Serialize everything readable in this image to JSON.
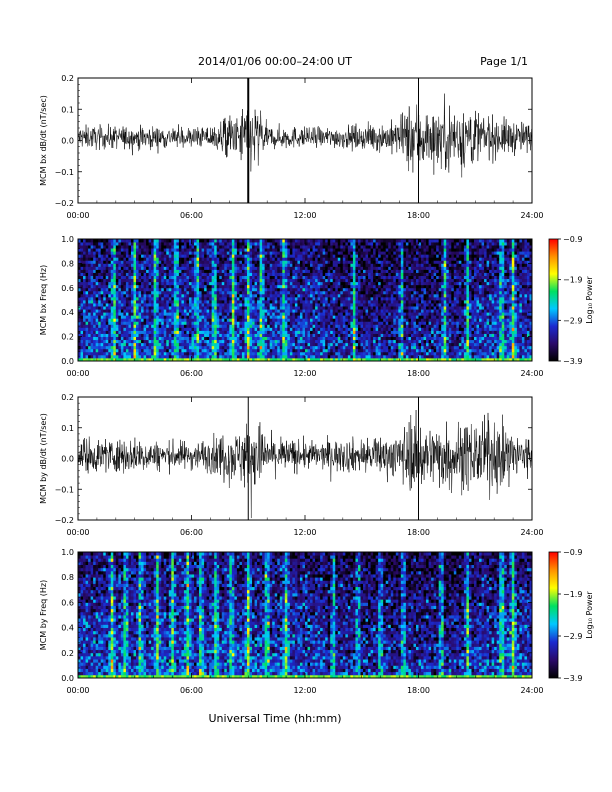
{
  "header": {
    "title": "2014/01/06  00:00–24:00 UT",
    "page": "Page 1/1"
  },
  "xlabel": "Universal Time (hh:mm)",
  "colors": {
    "background": "#ffffff",
    "trace": "#000000",
    "spectrogram_scale": [
      "#000000",
      "#2a0a6a",
      "#1b2bd0",
      "#00c8ff",
      "#00e060",
      "#ffff00",
      "#ff9000",
      "#ff0000"
    ]
  },
  "chart_data": [
    {
      "type": "line",
      "ylabel": "MCM bx dB/dt (nT/sec)",
      "xlim": [
        "00:00",
        "24:00"
      ],
      "xticks": [
        "00:00",
        "06:00",
        "12:00",
        "18:00",
        "24:00"
      ],
      "ylim": [
        -0.2,
        0.2
      ],
      "yticks": [
        "0.2",
        "0.1",
        "0.0",
        "−0.1",
        "−0.2"
      ],
      "series": [
        {
          "x_hours": [
            0,
            1,
            2,
            3,
            4,
            5,
            6,
            7,
            7.5,
            8,
            8.5,
            9,
            10,
            11,
            12,
            13,
            14,
            15,
            16,
            17,
            18,
            18.5,
            19,
            19.5,
            20,
            20.5,
            21,
            22,
            23,
            24
          ],
          "y_envelope": [
            0.04,
            0.04,
            0.04,
            0.04,
            0.04,
            0.035,
            0.035,
            0.04,
            0.06,
            0.09,
            0.06,
            0.2,
            0.04,
            0.04,
            0.035,
            0.035,
            0.04,
            0.04,
            0.05,
            0.06,
            0.2,
            0.09,
            0.11,
            0.13,
            0.15,
            0.12,
            0.1,
            0.07,
            0.06,
            0.05
          ]
        }
      ],
      "spikes": [
        {
          "x": "09:00",
          "ymin": -0.2,
          "ymax": 0.2
        },
        {
          "x": "18:00",
          "ymin": -0.2,
          "ymax": 0.2
        }
      ]
    },
    {
      "type": "heatmap",
      "ylabel": "MCM bx Freq (Hz)",
      "xlim": [
        "00:00",
        "24:00"
      ],
      "xticks": [
        "00:00",
        "06:00",
        "12:00",
        "18:00",
        "24:00"
      ],
      "ylim": [
        0.0,
        1.0
      ],
      "yticks": [
        "1.0",
        "0.8",
        "0.6",
        "0.4",
        "0.2",
        "0.0"
      ],
      "colorbar": {
        "label": "Log₁₀ Power",
        "range": [
          -3.9,
          -0.9
        ],
        "ticks": [
          "−0.9",
          "−1.9",
          "−2.9",
          "−3.9"
        ]
      },
      "bright_times_hours": [
        1.9,
        3.0,
        4.1,
        5.2,
        6.3,
        7.2,
        8.2,
        9.0,
        9.7,
        10.9,
        14.6,
        17.1,
        19.4,
        20.6,
        22.4,
        23.0
      ]
    },
    {
      "type": "line",
      "ylabel": "MCM by dB/dt (nT/sec)",
      "xlim": [
        "00:00",
        "24:00"
      ],
      "xticks": [
        "00:00",
        "06:00",
        "12:00",
        "18:00",
        "24:00"
      ],
      "ylim": [
        -0.2,
        0.2
      ],
      "yticks": [
        "0.2",
        "0.1",
        "0.0",
        "−0.1",
        "−0.2"
      ],
      "series": [
        {
          "x_hours": [
            0,
            1,
            2,
            3,
            4,
            5,
            6,
            7,
            7.5,
            8,
            8.5,
            9,
            10,
            11,
            12,
            13,
            14,
            15,
            16,
            17,
            18,
            18.5,
            19,
            19.5,
            20,
            20.5,
            21,
            22,
            23,
            24
          ],
          "y_envelope": [
            0.07,
            0.06,
            0.06,
            0.06,
            0.05,
            0.05,
            0.05,
            0.06,
            0.08,
            0.1,
            0.08,
            0.2,
            0.07,
            0.06,
            0.05,
            0.05,
            0.06,
            0.06,
            0.07,
            0.08,
            0.2,
            0.1,
            0.11,
            0.13,
            0.15,
            0.2,
            0.12,
            0.13,
            0.09,
            0.08
          ]
        }
      ],
      "spikes": [
        {
          "x": "09:00",
          "ymin": -0.2,
          "ymax": 0.2
        },
        {
          "x": "18:00",
          "ymin": -0.2,
          "ymax": 0.2
        }
      ]
    },
    {
      "type": "heatmap",
      "ylabel": "MCM by Freq (Hz)",
      "xlim": [
        "00:00",
        "24:00"
      ],
      "xticks": [
        "00:00",
        "06:00",
        "12:00",
        "18:00",
        "24:00"
      ],
      "ylim": [
        0.0,
        1.0
      ],
      "yticks": [
        "1.0",
        "0.8",
        "0.6",
        "0.4",
        "0.2",
        "0.0"
      ],
      "colorbar": {
        "label": "Log₁₀ Power",
        "range": [
          -3.9,
          -0.9
        ],
        "ticks": [
          "−0.9",
          "−1.9",
          "−2.9",
          "−3.9"
        ]
      },
      "bright_times_hours": [
        1.8,
        2.5,
        3.3,
        4.2,
        5.0,
        5.8,
        6.5,
        7.3,
        8.1,
        9.0,
        10.0,
        11.0,
        13.5,
        14.8,
        16.0,
        17.2,
        19.2,
        20.6,
        22.4,
        23.0
      ]
    }
  ]
}
